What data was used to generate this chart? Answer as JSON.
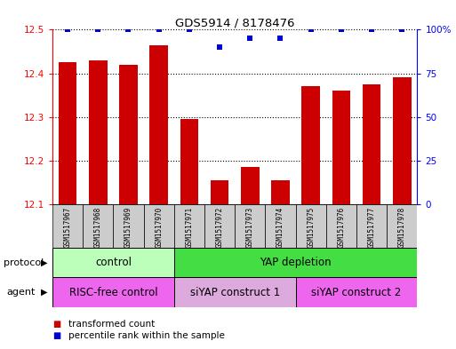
{
  "title": "GDS5914 / 8178476",
  "samples": [
    "GSM1517967",
    "GSM1517968",
    "GSM1517969",
    "GSM1517970",
    "GSM1517971",
    "GSM1517972",
    "GSM1517973",
    "GSM1517974",
    "GSM1517975",
    "GSM1517976",
    "GSM1517977",
    "GSM1517978"
  ],
  "transformed_counts": [
    12.425,
    12.43,
    12.42,
    12.465,
    12.295,
    12.155,
    12.185,
    12.155,
    12.37,
    12.36,
    12.375,
    12.39
  ],
  "percentile_ranks": [
    100,
    100,
    100,
    100,
    100,
    90,
    95,
    95,
    100,
    100,
    100,
    100
  ],
  "bar_color": "#cc0000",
  "dot_color": "#0000cc",
  "ylim_left": [
    12.1,
    12.5
  ],
  "ylim_right": [
    0,
    100
  ],
  "yticks_left": [
    12.1,
    12.2,
    12.3,
    12.4,
    12.5
  ],
  "yticks_right": [
    0,
    25,
    50,
    75,
    100
  ],
  "protocol_groups": [
    {
      "label": "control",
      "start": 0,
      "end": 4,
      "color": "#bbffbb"
    },
    {
      "label": "YAP depletion",
      "start": 4,
      "end": 12,
      "color": "#44dd44"
    }
  ],
  "agent_groups": [
    {
      "label": "RISC-free control",
      "start": 0,
      "end": 4,
      "color": "#ee66ee"
    },
    {
      "label": "siYAP construct 1",
      "start": 4,
      "end": 8,
      "color": "#ddaadd"
    },
    {
      "label": "siYAP construct 2",
      "start": 8,
      "end": 12,
      "color": "#ee66ee"
    }
  ],
  "legend_items": [
    {
      "label": "transformed count",
      "color": "#cc0000"
    },
    {
      "label": "percentile rank within the sample",
      "color": "#0000cc"
    }
  ],
  "protocol_label": "protocol",
  "agent_label": "agent",
  "sample_box_color": "#cccccc"
}
